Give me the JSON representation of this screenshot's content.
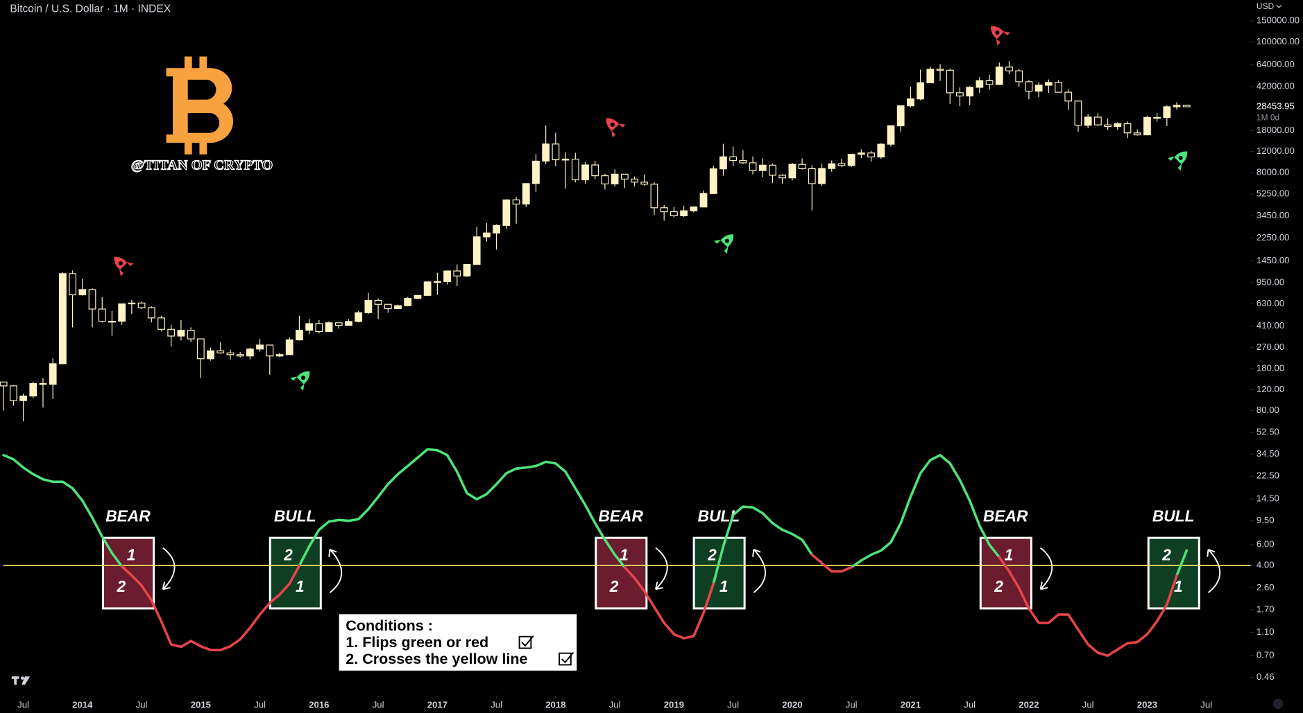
{
  "chart_data": {
    "type": "candlestick",
    "title": "Bitcoin / U.S. Dollar · 1M · INDEX",
    "currency": "USD",
    "countdown": "1M 0d",
    "watermark": "@TITAN OF CRYPTO",
    "log_scale": true,
    "grid": false,
    "x": [
      "2013-05",
      "2013-06",
      "2013-07",
      "2013-08",
      "2013-09",
      "2013-10",
      "2013-11",
      "2013-12",
      "2014-01",
      "2014-02",
      "2014-03",
      "2014-04",
      "2014-05",
      "2014-06",
      "2014-07",
      "2014-08",
      "2014-09",
      "2014-10",
      "2014-11",
      "2014-12",
      "2015-01",
      "2015-02",
      "2015-03",
      "2015-04",
      "2015-05",
      "2015-06",
      "2015-07",
      "2015-08",
      "2015-09",
      "2015-10",
      "2015-11",
      "2015-12",
      "2016-01",
      "2016-02",
      "2016-03",
      "2016-04",
      "2016-05",
      "2016-06",
      "2016-07",
      "2016-08",
      "2016-09",
      "2016-10",
      "2016-11",
      "2016-12",
      "2017-01",
      "2017-02",
      "2017-03",
      "2017-04",
      "2017-05",
      "2017-06",
      "2017-07",
      "2017-08",
      "2017-09",
      "2017-10",
      "2017-11",
      "2017-12",
      "2018-01",
      "2018-02",
      "2018-03",
      "2018-04",
      "2018-05",
      "2018-06",
      "2018-07",
      "2018-08",
      "2018-09",
      "2018-10",
      "2018-11",
      "2018-12",
      "2019-01",
      "2019-02",
      "2019-03",
      "2019-04",
      "2019-05",
      "2019-06",
      "2019-07",
      "2019-08",
      "2019-09",
      "2019-10",
      "2019-11",
      "2019-12",
      "2020-01",
      "2020-02",
      "2020-03",
      "2020-04",
      "2020-05",
      "2020-06",
      "2020-07",
      "2020-08",
      "2020-09",
      "2020-10",
      "2020-11",
      "2020-12",
      "2021-01",
      "2021-02",
      "2021-03",
      "2021-04",
      "2021-05",
      "2021-06",
      "2021-07",
      "2021-08",
      "2021-09",
      "2021-10",
      "2021-11",
      "2021-12",
      "2022-01",
      "2022-02",
      "2022-03",
      "2022-04",
      "2022-05",
      "2022-06",
      "2022-07",
      "2022-08",
      "2022-09",
      "2022-10",
      "2022-11",
      "2022-12",
      "2023-01",
      "2023-02",
      "2023-03",
      "2023-04",
      "2023-05"
    ],
    "xlim": [
      "2013-05",
      "2023-12"
    ],
    "xticks": [
      {
        "value": "2013-07",
        "label": "Jul"
      },
      {
        "value": "2014-01",
        "label": "2014"
      },
      {
        "value": "2014-07",
        "label": "Jul"
      },
      {
        "value": "2015-01",
        "label": "2015"
      },
      {
        "value": "2015-07",
        "label": "Jul"
      },
      {
        "value": "2016-01",
        "label": "2016"
      },
      {
        "value": "2016-07",
        "label": "Jul"
      },
      {
        "value": "2017-01",
        "label": "2017"
      },
      {
        "value": "2017-07",
        "label": "Jul"
      },
      {
        "value": "2018-01",
        "label": "2018"
      },
      {
        "value": "2018-07",
        "label": "Jul"
      },
      {
        "value": "2019-01",
        "label": "2019"
      },
      {
        "value": "2019-07",
        "label": "Jul"
      },
      {
        "value": "2020-01",
        "label": "2020"
      },
      {
        "value": "2020-07",
        "label": "Jul"
      },
      {
        "value": "2021-01",
        "label": "2021"
      },
      {
        "value": "2021-07",
        "label": "Jul"
      },
      {
        "value": "2022-01",
        "label": "2022"
      },
      {
        "value": "2022-07",
        "label": "Jul"
      },
      {
        "value": "2023-01",
        "label": "2023"
      },
      {
        "value": "2023-07",
        "label": "Jul"
      }
    ],
    "ylim": [
      0.34,
      224000
    ],
    "yticks": [
      {
        "value": 150000,
        "label": "150000.00"
      },
      {
        "value": 100000,
        "label": "100000.00"
      },
      {
        "value": 64000,
        "label": "64000.00"
      },
      {
        "value": 42000,
        "label": "42000.00"
      },
      {
        "value": 18000,
        "label": "18000.00"
      },
      {
        "value": 12000,
        "label": "12000.00"
      },
      {
        "value": 8000,
        "label": "8000.00"
      },
      {
        "value": 5250,
        "label": "5250.00"
      },
      {
        "value": 3450,
        "label": "3450.00"
      },
      {
        "value": 2250,
        "label": "2250.00"
      },
      {
        "value": 1450,
        "label": "1450.00"
      },
      {
        "value": 950,
        "label": "950.00"
      },
      {
        "value": 630,
        "label": "630.00"
      },
      {
        "value": 410,
        "label": "410.00"
      },
      {
        "value": 270,
        "label": "270.00"
      },
      {
        "value": 180,
        "label": "180.00"
      },
      {
        "value": 120,
        "label": "120.00"
      },
      {
        "value": 80,
        "label": "80.00"
      },
      {
        "value": 52.5,
        "label": "52.50"
      },
      {
        "value": 34.5,
        "label": "34.50"
      },
      {
        "value": 22.5,
        "label": "22.50"
      },
      {
        "value": 14.5,
        "label": "14.50"
      },
      {
        "value": 9.5,
        "label": "9.50"
      },
      {
        "value": 6,
        "label": "6.00"
      },
      {
        "value": 4,
        "label": "4.00"
      },
      {
        "value": 2.6,
        "label": "2.60"
      },
      {
        "value": 1.7,
        "label": "1.70"
      },
      {
        "value": 1.1,
        "label": "1.10"
      },
      {
        "value": 0.7,
        "label": "0.70"
      },
      {
        "value": 0.46,
        "label": "0.46"
      }
    ],
    "reference_line": {
      "value": 4,
      "color": "#f5e663"
    },
    "series": [
      {
        "type": "candlestick",
        "color": "#fff3c4",
        "open": [
          139,
          129,
          97,
          106,
          135,
          133,
          198,
          1130,
          750,
          830,
          570,
          450,
          450,
          630,
          640,
          585,
          480,
          385,
          338,
          378,
          320,
          218,
          254,
          244,
          236,
          230,
          263,
          284,
          230,
          236,
          314,
          378,
          430,
          369,
          437,
          416,
          448,
          531,
          673,
          624,
          574,
          608,
          700,
          742,
          963,
          970,
          1190,
          1080,
          1350,
          2300,
          2480,
          2870,
          4700,
          4340,
          6450,
          9950,
          13850,
          10220,
          10330,
          6930,
          9240,
          7500,
          6400,
          7730,
          7030,
          6630,
          6370,
          4040,
          3740,
          3460,
          3810,
          4100,
          5320,
          8570,
          10820,
          10080,
          9630,
          8300,
          9200,
          7570,
          7200,
          9350,
          8600,
          6440,
          8630,
          9450,
          9140,
          11350,
          11650,
          10780,
          13800,
          19700,
          28990,
          33140,
          45240,
          58800,
          57700,
          37300,
          35040,
          41460,
          47100,
          43800,
          61300,
          57000,
          46200,
          38500,
          43200,
          45500,
          37700,
          31800,
          19900,
          23300,
          20050,
          19430,
          20500,
          17170,
          16540,
          23140,
          23150,
          28480,
          29250
        ],
        "high": [
          140,
          130,
          111,
          140,
          150,
          220,
          1163,
          1200,
          1020,
          850,
          715,
          550,
          630,
          680,
          660,
          600,
          500,
          420,
          460,
          400,
          320,
          270,
          300,
          260,
          248,
          270,
          320,
          285,
          245,
          330,
          500,
          470,
          460,
          448,
          438,
          470,
          550,
          780,
          700,
          625,
          620,
          720,
          750,
          975,
          1150,
          1200,
          1350,
          1350,
          2790,
          3000,
          2930,
          4770,
          4980,
          6450,
          11400,
          19800,
          17200,
          11800,
          11700,
          9800,
          10000,
          7800,
          8500,
          7750,
          7400,
          7700,
          6600,
          4250,
          4100,
          4200,
          4150,
          5650,
          9100,
          13900,
          13200,
          12300,
          10900,
          10500,
          9500,
          7750,
          9600,
          10500,
          9200,
          9480,
          10080,
          10400,
          11450,
          12480,
          12100,
          14100,
          19900,
          29300,
          42000,
          58300,
          61800,
          64900,
          59500,
          41300,
          42400,
          50500,
          52900,
          67000,
          69000,
          59100,
          47900,
          45800,
          48200,
          47400,
          40000,
          31900,
          24700,
          25200,
          22700,
          21100,
          21450,
          18400,
          23950,
          25250,
          29200,
          31000,
          29300
        ],
        "low": [
          80,
          88,
          65,
          102,
          85,
          100,
          196,
          400,
          740,
          400,
          440,
          340,
          420,
          520,
          570,
          440,
          370,
          275,
          310,
          300,
          150,
          210,
          240,
          215,
          224,
          215,
          250,
          160,
          225,
          235,
          310,
          350,
          355,
          365,
          390,
          414,
          440,
          520,
          470,
          530,
          570,
          600,
          690,
          740,
          750,
          915,
          890,
          1060,
          1350,
          2100,
          1800,
          2700,
          2970,
          4100,
          5500,
          9400,
          9000,
          5870,
          6600,
          6430,
          7000,
          5750,
          6080,
          5900,
          6100,
          6200,
          3500,
          3150,
          3350,
          3380,
          3700,
          4080,
          5300,
          7500,
          9000,
          9400,
          7700,
          7300,
          6500,
          6430,
          6850,
          8450,
          3850,
          6150,
          8120,
          8900,
          8900,
          10550,
          9850,
          10400,
          13200,
          17600,
          28100,
          32300,
          45000,
          47000,
          30000,
          28800,
          29300,
          37300,
          39600,
          43300,
          53300,
          42000,
          32900,
          34300,
          37200,
          37600,
          26700,
          17600,
          18800,
          19600,
          18150,
          18200,
          15500,
          16300,
          16500,
          21400,
          19600,
          26950,
          28300
        ],
        "close": [
          129,
          97,
          106,
          135,
          133,
          198,
          1130,
          750,
          830,
          570,
          450,
          450,
          630,
          640,
          585,
          480,
          385,
          338,
          378,
          320,
          218,
          254,
          244,
          236,
          230,
          263,
          284,
          230,
          236,
          314,
          378,
          430,
          369,
          437,
          416,
          448,
          531,
          673,
          624,
          574,
          608,
          700,
          742,
          963,
          970,
          1190,
          1080,
          1350,
          2300,
          2480,
          2870,
          4700,
          4340,
          6450,
          9950,
          13850,
          10220,
          10330,
          6930,
          9240,
          7500,
          6400,
          7730,
          7030,
          6630,
          6370,
          4040,
          3740,
          3460,
          3810,
          4100,
          5320,
          8570,
          10820,
          10080,
          9630,
          8300,
          9200,
          7570,
          7200,
          9350,
          8600,
          6440,
          8630,
          9450,
          9140,
          11350,
          11650,
          10780,
          13800,
          19700,
          28990,
          33140,
          45240,
          58800,
          57700,
          37300,
          35040,
          41460,
          47100,
          43800,
          61300,
          57000,
          46200,
          38500,
          43200,
          45500,
          37700,
          31800,
          19900,
          23300,
          20050,
          19430,
          20500,
          17170,
          16540,
          23140,
          23150,
          28480,
          29250,
          28453.95
        ]
      },
      {
        "type": "line",
        "color": "#4ee27a",
        "values": [
          33.8,
          31.2,
          26.6,
          23.4,
          21.2,
          20.2,
          20.2,
          17.8,
          14.0,
          10.1,
          7.0,
          5.09,
          3.94,
          null,
          null,
          null,
          null,
          null,
          null,
          null,
          null,
          null,
          null,
          null,
          null,
          null,
          null,
          null,
          null,
          null,
          4.0,
          5.78,
          7.98,
          9.36,
          9.66,
          9.5,
          9.8,
          11.9,
          15.1,
          19.3,
          23.4,
          27.4,
          32.2,
          37.8,
          37.2,
          33.8,
          24.5,
          16.2,
          14.4,
          15.9,
          19.3,
          23.8,
          26.1,
          26.6,
          27.4,
          29.7,
          28.8,
          24.5,
          17.8,
          12.9,
          9.06,
          6.58,
          4.93,
          3.87,
          null,
          null,
          null,
          null,
          null,
          null,
          null,
          null,
          2.81,
          5.78,
          10.6,
          12.5,
          12.3,
          11.0,
          9.06,
          7.98,
          7.36,
          6.58,
          4.93,
          null,
          null,
          null,
          3.87,
          4.41,
          4.93,
          5.34,
          6.27,
          9.06,
          15.1,
          23.8,
          30.7,
          33.8,
          28.8,
          20.9,
          14.0,
          8.63,
          5.97,
          4.7,
          null,
          null,
          null,
          null,
          null,
          null,
          null,
          null,
          null,
          null,
          null,
          null,
          null,
          null,
          null,
          null,
          null,
          3.3,
          5.34
        ]
      },
      {
        "type": "line",
        "color": "#e8434a",
        "values": [
          null,
          null,
          null,
          null,
          null,
          null,
          null,
          null,
          null,
          null,
          null,
          null,
          3.94,
          3.3,
          2.72,
          2.04,
          1.36,
          0.87,
          0.83,
          0.93,
          0.84,
          0.78,
          0.78,
          0.84,
          0.96,
          1.2,
          1.55,
          1.94,
          2.28,
          2.81,
          4.0,
          null,
          null,
          null,
          null,
          null,
          null,
          null,
          null,
          null,
          null,
          null,
          null,
          null,
          null,
          null,
          null,
          null,
          null,
          null,
          null,
          null,
          null,
          null,
          null,
          null,
          null,
          null,
          null,
          null,
          null,
          null,
          null,
          3.87,
          3.14,
          2.43,
          1.79,
          1.32,
          1.06,
          0.98,
          1.02,
          1.6,
          2.81,
          null,
          null,
          null,
          null,
          null,
          null,
          null,
          null,
          null,
          4.93,
          4.19,
          3.57,
          3.57,
          3.87,
          null,
          null,
          null,
          null,
          null,
          null,
          null,
          null,
          null,
          null,
          null,
          null,
          null,
          null,
          4.7,
          3.57,
          2.59,
          1.74,
          1.32,
          1.32,
          1.55,
          1.55,
          1.16,
          0.87,
          0.74,
          0.7,
          0.79,
          0.89,
          0.91,
          1.06,
          1.36,
          1.88,
          3.3,
          null
        ]
      }
    ],
    "annotations": [
      {
        "label": "BEAR",
        "upper": "1",
        "lower": "2"
      },
      {
        "label": "BULL",
        "upper": "2",
        "lower": "1"
      },
      {
        "label": "BEAR",
        "upper": "1",
        "lower": "2"
      },
      {
        "label": "BULL",
        "upper": "2",
        "lower": "1"
      },
      {
        "label": "BEAR",
        "upper": "1",
        "lower": "2"
      },
      {
        "label": "BULL",
        "upper": "2",
        "lower": "1"
      }
    ],
    "conditions": {
      "title": "Conditions :",
      "items": [
        "1. Flips green or red",
        "2. Crosses the yellow line"
      ]
    }
  }
}
